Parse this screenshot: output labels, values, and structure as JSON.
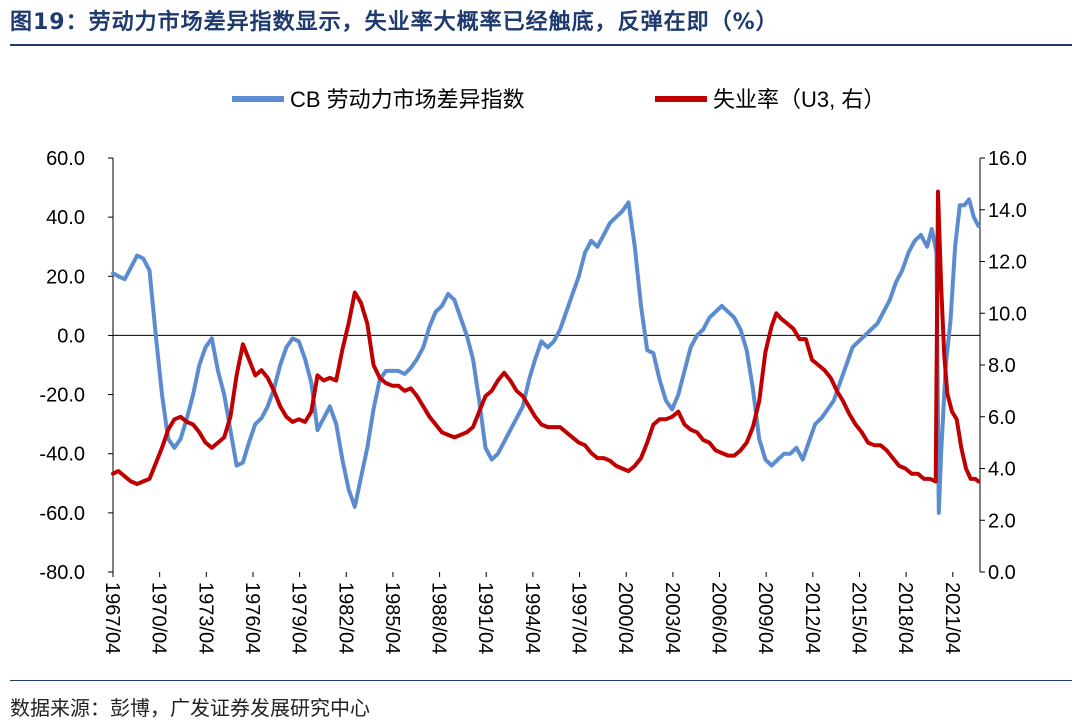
{
  "title": "图19：劳动力市场差异指数显示，失业率大概率已经触底，反弹在即（%）",
  "source": "数据来源：彭博，广发证券发展研究中心",
  "chart_data": {
    "type": "line",
    "legend_position": "top",
    "grid": false,
    "x_tick_labels": [
      "1967/04",
      "1970/04",
      "1973/04",
      "1976/04",
      "1979/04",
      "1982/04",
      "1985/04",
      "1988/04",
      "1991/04",
      "1994/04",
      "1997/04",
      "2000/04",
      "2003/04",
      "2006/04",
      "2009/04",
      "2012/04",
      "2015/04",
      "2018/04",
      "2021/04"
    ],
    "x_range": [
      1967.25,
      2023.0
    ],
    "y_left": {
      "range": [
        -80,
        60
      ],
      "ticks": [
        "60.0",
        "40.0",
        "20.0",
        "0.0",
        "-20.0",
        "-40.0",
        "-60.0",
        "-80.0"
      ]
    },
    "y_right": {
      "range": [
        0,
        16
      ],
      "ticks": [
        "16.0",
        "14.0",
        "12.0",
        "10.0",
        "8.0",
        "6.0",
        "4.0",
        "2.0",
        "0.0"
      ]
    },
    "series": [
      {
        "name": "CB 劳动力市场差异指数",
        "axis": "left",
        "color": "#5b8ccf",
        "points": [
          [
            1967.25,
            21
          ],
          [
            1967.6,
            20
          ],
          [
            1968.0,
            19
          ],
          [
            1968.4,
            23
          ],
          [
            1968.8,
            27
          ],
          [
            1969.2,
            26
          ],
          [
            1969.6,
            22
          ],
          [
            1970.0,
            0
          ],
          [
            1970.4,
            -20
          ],
          [
            1970.8,
            -35
          ],
          [
            1971.2,
            -38
          ],
          [
            1971.6,
            -35
          ],
          [
            1972.0,
            -28
          ],
          [
            1972.4,
            -20
          ],
          [
            1972.8,
            -10
          ],
          [
            1973.2,
            -4
          ],
          [
            1973.6,
            -1
          ],
          [
            1974.0,
            -12
          ],
          [
            1974.4,
            -20
          ],
          [
            1974.8,
            -32
          ],
          [
            1975.2,
            -44
          ],
          [
            1975.6,
            -43
          ],
          [
            1976.0,
            -36
          ],
          [
            1976.4,
            -30
          ],
          [
            1976.8,
            -28
          ],
          [
            1977.2,
            -24
          ],
          [
            1977.6,
            -18
          ],
          [
            1978.0,
            -10
          ],
          [
            1978.4,
            -4
          ],
          [
            1978.8,
            -1
          ],
          [
            1979.2,
            -2
          ],
          [
            1979.6,
            -8
          ],
          [
            1980.0,
            -16
          ],
          [
            1980.4,
            -32
          ],
          [
            1980.8,
            -28
          ],
          [
            1981.2,
            -24
          ],
          [
            1981.6,
            -30
          ],
          [
            1982.0,
            -42
          ],
          [
            1982.4,
            -52
          ],
          [
            1982.8,
            -58
          ],
          [
            1983.2,
            -48
          ],
          [
            1983.6,
            -38
          ],
          [
            1984.0,
            -25
          ],
          [
            1984.4,
            -15
          ],
          [
            1984.8,
            -12
          ],
          [
            1985.2,
            -12
          ],
          [
            1985.6,
            -12
          ],
          [
            1986.0,
            -13
          ],
          [
            1986.4,
            -11
          ],
          [
            1986.8,
            -8
          ],
          [
            1987.2,
            -4
          ],
          [
            1987.6,
            3
          ],
          [
            1988.0,
            8
          ],
          [
            1988.4,
            10
          ],
          [
            1988.8,
            14
          ],
          [
            1989.2,
            12
          ],
          [
            1989.6,
            6
          ],
          [
            1990.0,
            0
          ],
          [
            1990.4,
            -8
          ],
          [
            1990.8,
            -22
          ],
          [
            1991.2,
            -38
          ],
          [
            1991.6,
            -42
          ],
          [
            1992.0,
            -40
          ],
          [
            1992.4,
            -36
          ],
          [
            1992.8,
            -32
          ],
          [
            1993.2,
            -28
          ],
          [
            1993.6,
            -24
          ],
          [
            1994.0,
            -15
          ],
          [
            1994.4,
            -8
          ],
          [
            1994.8,
            -2
          ],
          [
            1995.2,
            -4
          ],
          [
            1995.6,
            -2
          ],
          [
            1996.0,
            2
          ],
          [
            1996.4,
            8
          ],
          [
            1996.8,
            14
          ],
          [
            1997.2,
            20
          ],
          [
            1997.6,
            28
          ],
          [
            1998.0,
            32
          ],
          [
            1998.4,
            30
          ],
          [
            1998.8,
            34
          ],
          [
            1999.2,
            38
          ],
          [
            1999.6,
            40
          ],
          [
            2000.0,
            42
          ],
          [
            2000.4,
            45
          ],
          [
            2000.8,
            30
          ],
          [
            2001.2,
            10
          ],
          [
            2001.6,
            -5
          ],
          [
            2002.0,
            -6
          ],
          [
            2002.4,
            -15
          ],
          [
            2002.8,
            -22
          ],
          [
            2003.2,
            -25
          ],
          [
            2003.6,
            -20
          ],
          [
            2004.0,
            -12
          ],
          [
            2004.4,
            -4
          ],
          [
            2004.8,
            0
          ],
          [
            2005.2,
            2
          ],
          [
            2005.6,
            6
          ],
          [
            2006.0,
            8
          ],
          [
            2006.4,
            10
          ],
          [
            2006.8,
            8
          ],
          [
            2007.2,
            6
          ],
          [
            2007.6,
            2
          ],
          [
            2008.0,
            -5
          ],
          [
            2008.4,
            -18
          ],
          [
            2008.8,
            -35
          ],
          [
            2009.2,
            -42
          ],
          [
            2009.6,
            -44
          ],
          [
            2010.0,
            -42
          ],
          [
            2010.4,
            -40
          ],
          [
            2010.8,
            -40
          ],
          [
            2011.2,
            -38
          ],
          [
            2011.6,
            -42
          ],
          [
            2012.0,
            -36
          ],
          [
            2012.4,
            -30
          ],
          [
            2012.8,
            -28
          ],
          [
            2013.2,
            -25
          ],
          [
            2013.6,
            -22
          ],
          [
            2014.0,
            -16
          ],
          [
            2014.4,
            -10
          ],
          [
            2014.8,
            -4
          ],
          [
            2015.2,
            -2
          ],
          [
            2015.6,
            0
          ],
          [
            2016.0,
            2
          ],
          [
            2016.4,
            4
          ],
          [
            2016.8,
            8
          ],
          [
            2017.2,
            12
          ],
          [
            2017.6,
            18
          ],
          [
            2018.0,
            22
          ],
          [
            2018.4,
            28
          ],
          [
            2018.8,
            32
          ],
          [
            2019.2,
            34
          ],
          [
            2019.6,
            30
          ],
          [
            2019.9,
            36
          ],
          [
            2020.2,
            28
          ],
          [
            2020.35,
            -60
          ],
          [
            2020.5,
            -40
          ],
          [
            2020.8,
            -10
          ],
          [
            2021.1,
            5
          ],
          [
            2021.4,
            30
          ],
          [
            2021.7,
            44
          ],
          [
            2022.0,
            44
          ],
          [
            2022.3,
            46
          ],
          [
            2022.6,
            40
          ],
          [
            2022.9,
            37
          ]
        ]
      },
      {
        "name": "失业率（U3, 右）",
        "axis": "right",
        "color": "#c00000",
        "points": [
          [
            1967.25,
            3.8
          ],
          [
            1967.6,
            3.9
          ],
          [
            1968.0,
            3.7
          ],
          [
            1968.4,
            3.5
          ],
          [
            1968.8,
            3.4
          ],
          [
            1969.2,
            3.5
          ],
          [
            1969.6,
            3.6
          ],
          [
            1970.0,
            4.2
          ],
          [
            1970.4,
            4.8
          ],
          [
            1970.8,
            5.5
          ],
          [
            1971.2,
            5.9
          ],
          [
            1971.6,
            6.0
          ],
          [
            1972.0,
            5.8
          ],
          [
            1972.4,
            5.7
          ],
          [
            1972.8,
            5.4
          ],
          [
            1973.2,
            5.0
          ],
          [
            1973.6,
            4.8
          ],
          [
            1974.0,
            5.0
          ],
          [
            1974.4,
            5.2
          ],
          [
            1974.8,
            6.0
          ],
          [
            1975.2,
            7.6
          ],
          [
            1975.6,
            8.8
          ],
          [
            1976.0,
            8.2
          ],
          [
            1976.4,
            7.6
          ],
          [
            1976.8,
            7.8
          ],
          [
            1977.2,
            7.5
          ],
          [
            1977.6,
            7.0
          ],
          [
            1978.0,
            6.4
          ],
          [
            1978.4,
            6.0
          ],
          [
            1978.8,
            5.8
          ],
          [
            1979.2,
            5.9
          ],
          [
            1979.6,
            5.8
          ],
          [
            1980.0,
            6.2
          ],
          [
            1980.4,
            7.6
          ],
          [
            1980.8,
            7.4
          ],
          [
            1981.2,
            7.5
          ],
          [
            1981.6,
            7.4
          ],
          [
            1982.0,
            8.6
          ],
          [
            1982.4,
            9.6
          ],
          [
            1982.8,
            10.8
          ],
          [
            1983.2,
            10.4
          ],
          [
            1983.6,
            9.6
          ],
          [
            1984.0,
            8.0
          ],
          [
            1984.4,
            7.5
          ],
          [
            1984.8,
            7.3
          ],
          [
            1985.2,
            7.2
          ],
          [
            1985.6,
            7.2
          ],
          [
            1986.0,
            7.0
          ],
          [
            1986.4,
            7.1
          ],
          [
            1986.8,
            6.8
          ],
          [
            1987.2,
            6.4
          ],
          [
            1987.6,
            6.0
          ],
          [
            1988.0,
            5.7
          ],
          [
            1988.4,
            5.4
          ],
          [
            1988.8,
            5.3
          ],
          [
            1989.2,
            5.2
          ],
          [
            1989.6,
            5.3
          ],
          [
            1990.0,
            5.4
          ],
          [
            1990.4,
            5.6
          ],
          [
            1990.8,
            6.2
          ],
          [
            1991.2,
            6.8
          ],
          [
            1991.6,
            7.0
          ],
          [
            1992.0,
            7.4
          ],
          [
            1992.4,
            7.7
          ],
          [
            1992.8,
            7.4
          ],
          [
            1993.2,
            7.0
          ],
          [
            1993.6,
            6.8
          ],
          [
            1994.0,
            6.4
          ],
          [
            1994.4,
            6.0
          ],
          [
            1994.8,
            5.7
          ],
          [
            1995.2,
            5.6
          ],
          [
            1995.6,
            5.6
          ],
          [
            1996.0,
            5.6
          ],
          [
            1996.4,
            5.4
          ],
          [
            1996.8,
            5.2
          ],
          [
            1997.2,
            5.0
          ],
          [
            1997.6,
            4.9
          ],
          [
            1998.0,
            4.6
          ],
          [
            1998.4,
            4.4
          ],
          [
            1998.8,
            4.4
          ],
          [
            1999.2,
            4.3
          ],
          [
            1999.6,
            4.1
          ],
          [
            2000.0,
            4.0
          ],
          [
            2000.4,
            3.9
          ],
          [
            2000.8,
            4.1
          ],
          [
            2001.2,
            4.4
          ],
          [
            2001.6,
            5.0
          ],
          [
            2002.0,
            5.7
          ],
          [
            2002.4,
            5.9
          ],
          [
            2002.8,
            5.9
          ],
          [
            2003.2,
            6.0
          ],
          [
            2003.6,
            6.2
          ],
          [
            2004.0,
            5.7
          ],
          [
            2004.4,
            5.5
          ],
          [
            2004.8,
            5.4
          ],
          [
            2005.2,
            5.1
          ],
          [
            2005.6,
            5.0
          ],
          [
            2006.0,
            4.7
          ],
          [
            2006.4,
            4.6
          ],
          [
            2006.8,
            4.5
          ],
          [
            2007.2,
            4.5
          ],
          [
            2007.6,
            4.7
          ],
          [
            2008.0,
            5.0
          ],
          [
            2008.4,
            5.6
          ],
          [
            2008.8,
            6.6
          ],
          [
            2009.2,
            8.5
          ],
          [
            2009.6,
            9.5
          ],
          [
            2009.9,
            10.0
          ],
          [
            2010.2,
            9.8
          ],
          [
            2010.6,
            9.6
          ],
          [
            2011.0,
            9.4
          ],
          [
            2011.4,
            9.0
          ],
          [
            2011.8,
            9.0
          ],
          [
            2012.2,
            8.2
          ],
          [
            2012.6,
            8.0
          ],
          [
            2013.0,
            7.8
          ],
          [
            2013.4,
            7.5
          ],
          [
            2013.8,
            7.0
          ],
          [
            2014.2,
            6.6
          ],
          [
            2014.6,
            6.1
          ],
          [
            2015.0,
            5.7
          ],
          [
            2015.4,
            5.4
          ],
          [
            2015.8,
            5.0
          ],
          [
            2016.2,
            4.9
          ],
          [
            2016.6,
            4.9
          ],
          [
            2017.0,
            4.7
          ],
          [
            2017.4,
            4.4
          ],
          [
            2017.8,
            4.1
          ],
          [
            2018.2,
            4.0
          ],
          [
            2018.6,
            3.8
          ],
          [
            2019.0,
            3.8
          ],
          [
            2019.4,
            3.6
          ],
          [
            2019.8,
            3.6
          ],
          [
            2020.15,
            3.5
          ],
          [
            2020.3,
            14.7
          ],
          [
            2020.5,
            11.1
          ],
          [
            2020.7,
            8.4
          ],
          [
            2020.9,
            6.9
          ],
          [
            2021.2,
            6.2
          ],
          [
            2021.5,
            5.9
          ],
          [
            2021.8,
            4.8
          ],
          [
            2022.1,
            4.0
          ],
          [
            2022.4,
            3.6
          ],
          [
            2022.7,
            3.6
          ],
          [
            2022.9,
            3.5
          ]
        ]
      }
    ]
  }
}
